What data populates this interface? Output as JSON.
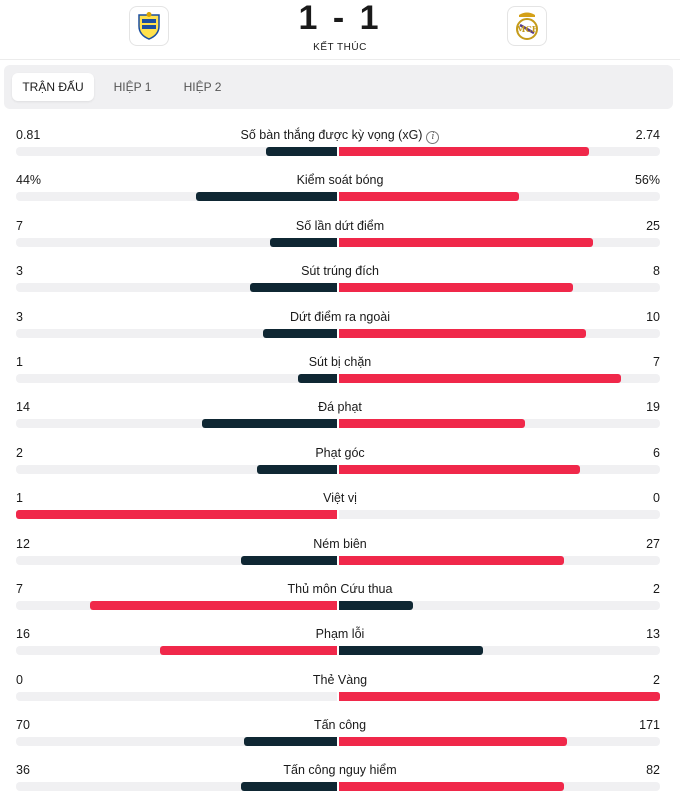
{
  "match": {
    "score": "1 - 1",
    "status": "KẾT THÚC",
    "home_crest_icon": "las-palmas-crest-icon",
    "away_crest_icon": "real-madrid-crest-icon"
  },
  "tabs": [
    {
      "label": "TRẬN ĐẤU",
      "active": true
    },
    {
      "label": "HIỆP 1",
      "active": false
    },
    {
      "label": "HIỆP 2",
      "active": false
    }
  ],
  "colors": {
    "dark": "#0f2733",
    "red": "#f0284a",
    "track": "#f0f0f2"
  },
  "stats": [
    {
      "label": "Số bàn thắng được kỳ vọng (xG)",
      "home": "0.81",
      "away": "2.74",
      "home_ratio": 0.22,
      "away_ratio": 0.78,
      "info": true
    },
    {
      "label": "Kiểm soát bóng",
      "home": "44%",
      "away": "56%",
      "home_ratio": 0.44,
      "away_ratio": 0.56
    },
    {
      "label": "Số lần dứt điểm",
      "home": "7",
      "away": "25",
      "home_ratio": 0.21,
      "away_ratio": 0.79
    },
    {
      "label": "Sút trúng đích",
      "home": "3",
      "away": "8",
      "home_ratio": 0.27,
      "away_ratio": 0.73
    },
    {
      "label": "Dứt điểm ra ngoài",
      "home": "3",
      "away": "10",
      "home_ratio": 0.23,
      "away_ratio": 0.77
    },
    {
      "label": "Sút bị chặn",
      "home": "1",
      "away": "7",
      "home_ratio": 0.12,
      "away_ratio": 0.88
    },
    {
      "label": "Đá phạt",
      "home": "14",
      "away": "19",
      "home_ratio": 0.42,
      "away_ratio": 0.58
    },
    {
      "label": "Phạt góc",
      "home": "2",
      "away": "6",
      "home_ratio": 0.25,
      "away_ratio": 0.75
    },
    {
      "label": "Việt vị",
      "home": "1",
      "away": "0",
      "home_ratio": 1.0,
      "away_ratio": 0.0
    },
    {
      "label": "Ném biên",
      "home": "12",
      "away": "27",
      "home_ratio": 0.3,
      "away_ratio": 0.7
    },
    {
      "label": "Thủ môn Cứu thua",
      "home": "7",
      "away": "2",
      "home_ratio": 0.77,
      "away_ratio": 0.23
    },
    {
      "label": "Phạm lỗi",
      "home": "16",
      "away": "13",
      "home_ratio": 0.55,
      "away_ratio": 0.45
    },
    {
      "label": "Thẻ Vàng",
      "home": "0",
      "away": "2",
      "home_ratio": 0.0,
      "away_ratio": 1.0
    },
    {
      "label": "Tấn công",
      "home": "70",
      "away": "171",
      "home_ratio": 0.29,
      "away_ratio": 0.71
    },
    {
      "label": "Tấn công nguy hiểm",
      "home": "36",
      "away": "82",
      "home_ratio": 0.3,
      "away_ratio": 0.7
    }
  ]
}
